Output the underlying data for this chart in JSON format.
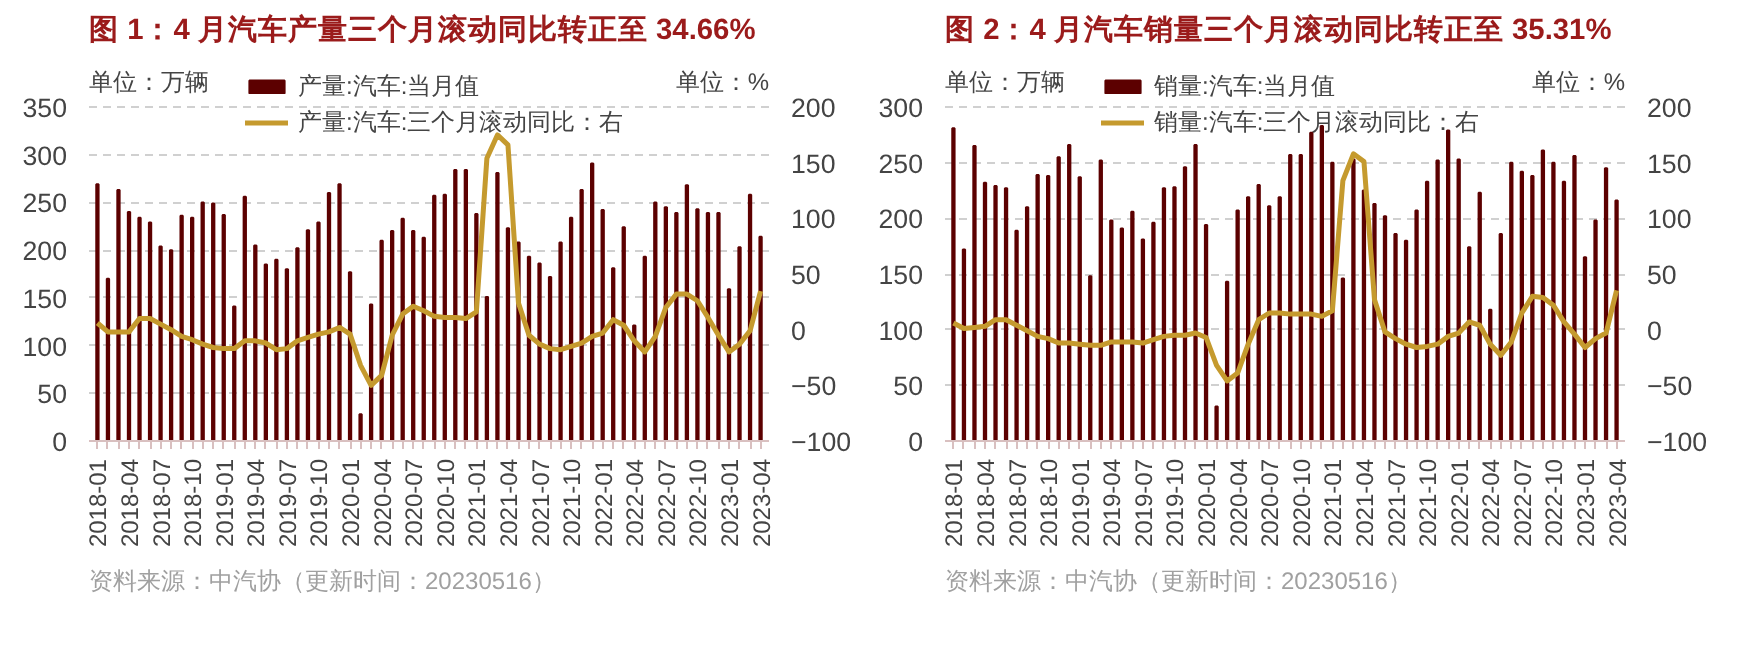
{
  "chart_data": [
    {
      "type": "bar",
      "title": "图 1：4 月汽车产量三个月滚动同比转正至 34.66%",
      "ylabel": "单位：万辆",
      "y2label": "单位：%",
      "categories": [
        "2018-01",
        null,
        null,
        "2018-04",
        null,
        null,
        "2018-07",
        null,
        null,
        "2018-10",
        null,
        null,
        "2019-01",
        null,
        null,
        "2019-04",
        null,
        null,
        "2019-07",
        null,
        null,
        "2019-10",
        null,
        null,
        "2020-01",
        null,
        null,
        "2020-04",
        null,
        null,
        "2020-07",
        null,
        null,
        "2020-10",
        null,
        null,
        "2021-01",
        null,
        null,
        "2021-04",
        null,
        null,
        "2021-07",
        null,
        null,
        "2021-10",
        null,
        null,
        "2022-01",
        null,
        null,
        "2022-04",
        null,
        null,
        "2022-07",
        null,
        null,
        "2022-10",
        null,
        null,
        "2023-01",
        null,
        null,
        "2023-04"
      ],
      "series": [
        {
          "name": "产量:汽车:当月值",
          "color": "#5c0000",
          "values": [
            269,
            170,
            263,
            240,
            234,
            229,
            204,
            200,
            236,
            234,
            250,
            249,
            237,
            141,
            256,
            205,
            185,
            190,
            180,
            202,
            221,
            229,
            260,
            269,
            177,
            28,
            143,
            210,
            220,
            233,
            220,
            213,
            257,
            258,
            284,
            284,
            238,
            151,
            281,
            223,
            208,
            193,
            186,
            172,
            208,
            234,
            263,
            291,
            242,
            181,
            224,
            121,
            193,
            250,
            245,
            239,
            268,
            243,
            239,
            239,
            159,
            203,
            258,
            214
          ]
        },
        {
          "name": "产量:汽车:三个月滚动同比：右",
          "type": "line",
          "axis": "y2",
          "color": "#c59a2e",
          "values": [
            6,
            -2,
            -2,
            -2,
            10,
            10,
            5,
            0,
            -6,
            -9,
            -13,
            -16,
            -17,
            -17,
            -10,
            -10,
            -12,
            -18,
            -17,
            -10,
            -7,
            -4,
            -2,
            2,
            -4,
            -32,
            -50,
            -41,
            -5,
            14,
            21,
            17,
            12,
            11,
            11,
            10,
            16,
            154,
            175,
            166,
            24,
            -5,
            -13,
            -17,
            -18,
            -15,
            -12,
            -6,
            -3,
            9,
            4,
            -10,
            -20,
            -6,
            20,
            32,
            32,
            26,
            11,
            -5,
            -20,
            -13,
            -1,
            34.66
          ]
        }
      ],
      "ylim": [
        0,
        350
      ],
      "yticks": [
        0,
        50,
        100,
        150,
        200,
        250,
        300,
        350
      ],
      "y2lim": [
        -100,
        200
      ],
      "y2ticks": [
        -100,
        -50,
        0,
        50,
        100,
        150,
        200
      ],
      "grid": "y",
      "legend": "top",
      "annotations": [
        "资料来源：中汽协（更新时间：20230516）"
      ]
    },
    {
      "type": "bar",
      "title": "图 2：4 月汽车销量三个月滚动同比转正至 35.31%",
      "ylabel": "单位：万辆",
      "y2label": "单位：%",
      "categories": [
        "2018-01",
        null,
        null,
        "2018-04",
        null,
        null,
        "2018-07",
        null,
        null,
        "2018-10",
        null,
        null,
        "2019-01",
        null,
        null,
        "2019-04",
        null,
        null,
        "2019-07",
        null,
        null,
        "2019-10",
        null,
        null,
        "2020-01",
        null,
        null,
        "2020-04",
        null,
        null,
        "2020-07",
        null,
        null,
        "2020-10",
        null,
        null,
        "2021-01",
        null,
        null,
        "2021-04",
        null,
        null,
        "2021-07",
        null,
        null,
        "2021-10",
        null,
        null,
        "2022-01",
        null,
        null,
        "2022-04",
        null,
        null,
        "2022-07",
        null,
        null,
        "2022-10",
        null,
        null,
        "2023-01",
        null,
        null,
        "2023-04"
      ],
      "series": [
        {
          "name": "销量:汽车:当月值",
          "color": "#5c0000",
          "values": [
            281,
            172,
            265,
            232,
            229,
            227,
            189,
            210,
            239,
            238,
            255,
            266,
            237,
            148,
            252,
            198,
            191,
            206,
            181,
            196,
            227,
            228,
            246,
            266,
            194,
            31,
            143,
            207,
            219,
            230,
            211,
            219,
            257,
            257,
            277,
            283,
            250,
            146,
            253,
            225,
            213,
            202,
            186,
            180,
            207,
            233,
            252,
            279,
            253,
            174,
            223,
            118,
            186,
            250,
            242,
            238,
            261,
            250,
            233,
            256,
            165,
            198,
            245,
            216
          ]
        },
        {
          "name": "销量:汽车:三个月滚动同比：右",
          "type": "line",
          "axis": "y2",
          "color": "#c59a2e",
          "values": [
            6,
            1,
            2,
            3,
            9,
            9,
            4,
            -1,
            -6,
            -8,
            -12,
            -12,
            -13,
            -14,
            -14,
            -11,
            -11,
            -11,
            -12,
            -9,
            -6,
            -5,
            -5,
            -3,
            -7,
            -32,
            -46,
            -39,
            -13,
            9,
            15,
            15,
            14,
            14,
            14,
            12,
            17,
            134,
            158,
            151,
            27,
            -2,
            -8,
            -13,
            -16,
            -15,
            -13,
            -6,
            -3,
            7,
            4,
            -13,
            -23,
            -11,
            15,
            30,
            29,
            22,
            7,
            -4,
            -16,
            -8,
            -3,
            35.31
          ]
        }
      ],
      "ylim": [
        0,
        300
      ],
      "yticks": [
        0,
        50,
        100,
        150,
        200,
        250,
        300
      ],
      "y2lim": [
        -100,
        200
      ],
      "y2ticks": [
        -100,
        -50,
        0,
        50,
        100,
        150,
        200
      ],
      "grid": "y",
      "legend": "top",
      "annotations": [
        "资料来源：中汽协（更新时间：20230516）"
      ]
    }
  ]
}
